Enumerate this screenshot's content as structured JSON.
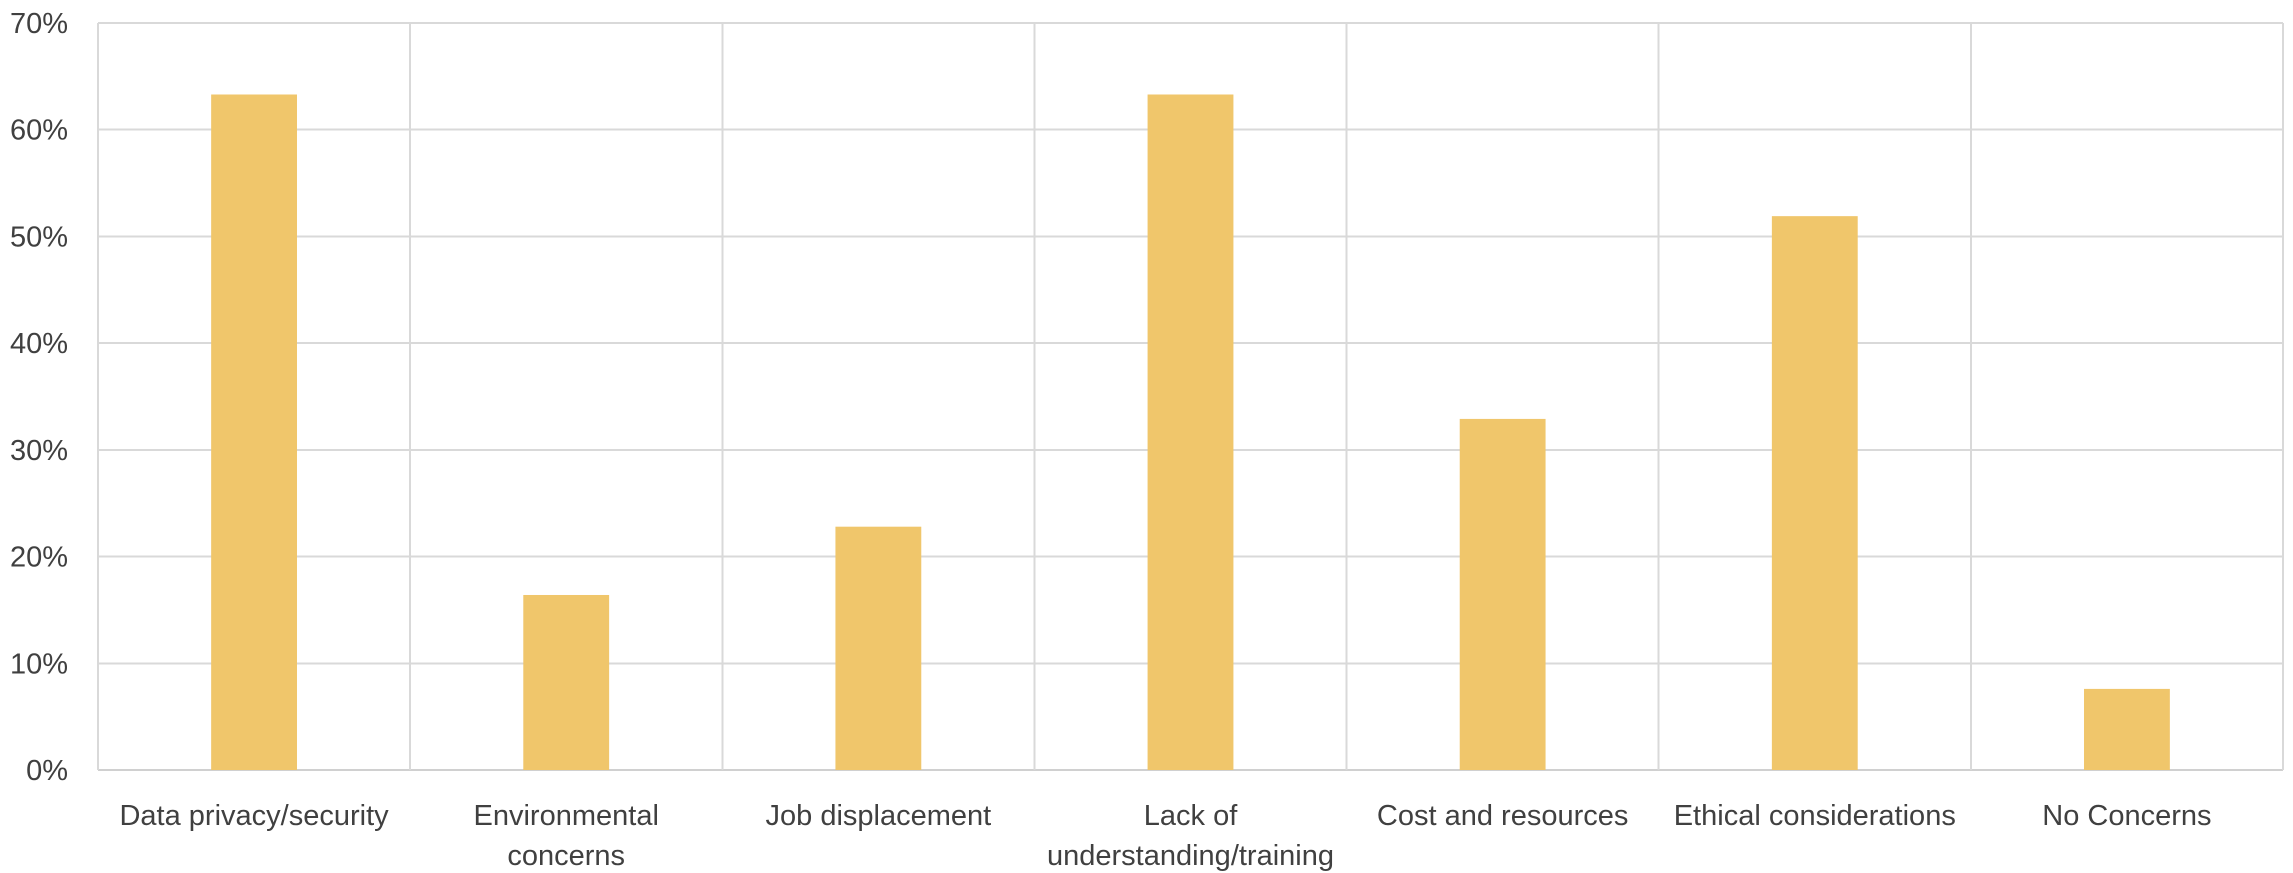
{
  "chart_data": {
    "type": "bar",
    "title": "",
    "xlabel": "",
    "ylabel": "",
    "categories": [
      "Data privacy/security",
      "Environmental concerns",
      "Job displacement",
      "Lack of understanding/training",
      "Cost and resources",
      "Ethical considerations",
      "No Concerns"
    ],
    "category_lines": [
      [
        "Data privacy/security"
      ],
      [
        "Environmental",
        "concerns"
      ],
      [
        "Job displacement"
      ],
      [
        "Lack of",
        "understanding/training"
      ],
      [
        "Cost and resources"
      ],
      [
        "Ethical considerations"
      ],
      [
        "No Concerns"
      ]
    ],
    "values": [
      63.3,
      16.4,
      22.8,
      63.3,
      32.9,
      51.9,
      7.6
    ],
    "value_unit": "%",
    "ylim": [
      0,
      70
    ],
    "yticks": [
      0,
      10,
      20,
      30,
      40,
      50,
      60,
      70
    ],
    "ytick_labels": [
      "0%",
      "10%",
      "20%",
      "30%",
      "40%",
      "50%",
      "60%",
      "70%"
    ],
    "grid": {
      "horizontal": true,
      "vertical_category_separators": true
    },
    "legend": "none",
    "colors": {
      "bar": "#f0c66b",
      "grid": "#d9d9d9",
      "text": "#404040"
    }
  }
}
